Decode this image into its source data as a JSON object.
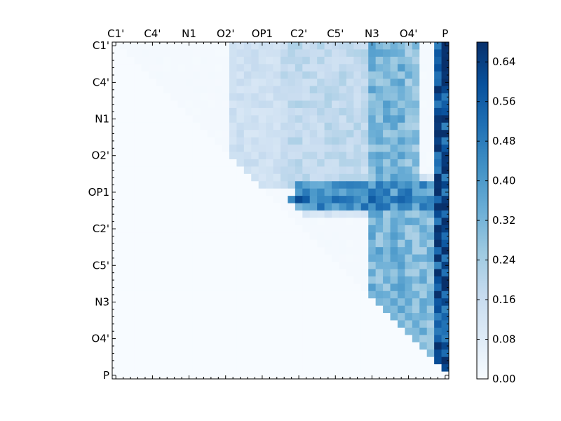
{
  "chart_data": {
    "type": "heatmap",
    "title": "",
    "xlabel": "",
    "ylabel": "",
    "labels": [
      "C1'",
      "C4'",
      "N1",
      "O2'",
      "OP1",
      "C2'",
      "C5'",
      "N3",
      "O4'",
      "P"
    ],
    "label_every": 5,
    "matrix_size": 46,
    "color_scale": "Blues",
    "colorbar": {
      "min": 0.0,
      "max": 0.68,
      "ticks": [
        "0.00",
        "0.08",
        "0.16",
        "0.24",
        "0.32",
        "0.40",
        "0.48",
        "0.56",
        "0.64"
      ]
    },
    "upper_triangle_only": true,
    "base_level": 0.01,
    "column_bands": [
      {
        "cols": [
          35,
          39
        ],
        "value": 0.35
      },
      {
        "cols": [
          38,
          41
        ],
        "value": 0.3
      },
      {
        "cols": [
          44,
          45
        ],
        "value": 0.62
      }
    ],
    "row_bands": [
      {
        "rows": [
          18,
          23
        ],
        "value": 0.12
      },
      {
        "rows": [
          19,
          22
        ],
        "value": 0.42
      },
      {
        "rows": [
          21,
          21
        ],
        "value": 0.5
      }
    ],
    "block_regions": [
      {
        "rows": [
          0,
          19
        ],
        "cols": [
          23,
          38
        ],
        "value": 0.18
      },
      {
        "rows": [
          0,
          19
        ],
        "cols": [
          16,
          22
        ],
        "value": 0.14
      },
      {
        "rows": [
          20,
          44
        ],
        "cols": [
          40,
          45
        ],
        "value": 0.3
      }
    ]
  },
  "colors": {
    "low": "#f7fbff",
    "mid": "#6baed6",
    "high": "#08306b"
  }
}
